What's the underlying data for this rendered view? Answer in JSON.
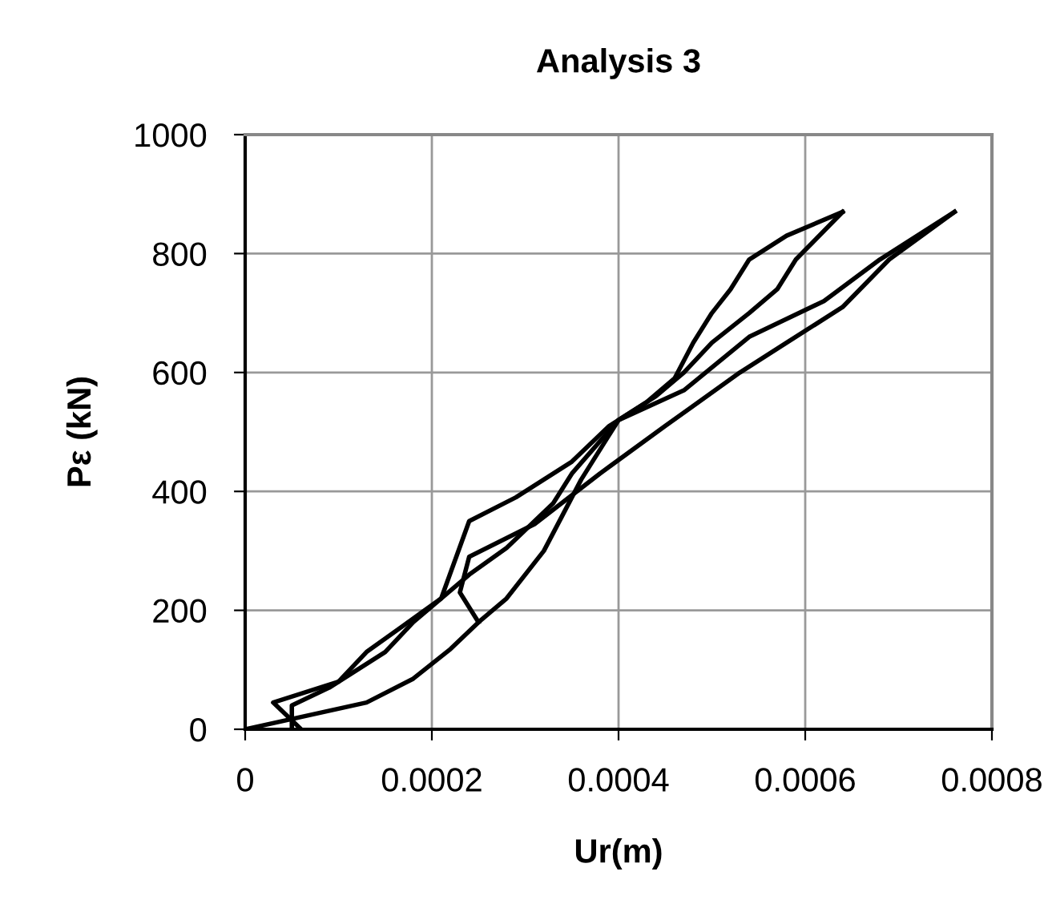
{
  "chart_data": {
    "type": "line",
    "title": "Analysis 3",
    "xlabel": "Ur(m)",
    "ylabel": "Pε (kN)",
    "xlim": [
      0,
      0.0008
    ],
    "xticks": [
      0,
      0.0002,
      0.0004,
      0.0006,
      0.0008
    ],
    "ylim": [
      0,
      1000
    ],
    "yticks": [
      0,
      200,
      400,
      600,
      800,
      1000
    ],
    "grid": true,
    "marker": "none",
    "line_style": "solid",
    "series": [
      {
        "color": "#000000",
        "x": [
          0,
          0.00013,
          0.00018,
          0.00022,
          0.00025,
          0.00028,
          0.00032,
          0.00034,
          0.00036,
          0.0004,
          0.00044,
          0.00047,
          0.0005,
          0.00054,
          0.00057,
          0.00059,
          0.00064
        ],
        "values": [
          0,
          45,
          85,
          135,
          180,
          220,
          300,
          360,
          420,
          520,
          560,
          600,
          650,
          700,
          740,
          790,
          870
        ]
      },
      {
        "color": "#000000",
        "x": [
          6e-05,
          3e-05,
          0.0001,
          0.00013,
          0.00017,
          0.00021,
          0.00024,
          0.00029,
          0.00035,
          0.00039,
          0.00043,
          0.00046,
          0.00048,
          0.0005,
          0.00052,
          0.00054,
          0.00058,
          0.00064
        ],
        "values": [
          0,
          45,
          80,
          130,
          175,
          220,
          350,
          390,
          450,
          510,
          550,
          590,
          650,
          700,
          740,
          790,
          830,
          870
        ]
      },
      {
        "color": "#000000",
        "x": [
          5e-05,
          5e-05,
          9e-05,
          0.00015,
          0.00018,
          0.00024,
          0.00028,
          0.00033,
          0.00035,
          0.0004,
          0.00047,
          0.00054,
          0.00062,
          0.00068,
          0.00076
        ],
        "values": [
          0,
          40,
          70,
          130,
          180,
          260,
          305,
          380,
          430,
          520,
          570,
          660,
          720,
          790,
          870
        ]
      },
      {
        "color": "#000000",
        "x": [
          0.00025,
          0.00023,
          0.00024,
          0.00031,
          0.00038,
          0.00045,
          0.00053,
          0.00058,
          0.00064,
          0.00069,
          0.00076
        ],
        "values": [
          180,
          230,
          290,
          345,
          430,
          510,
          600,
          650,
          710,
          790,
          870
        ]
      }
    ]
  }
}
